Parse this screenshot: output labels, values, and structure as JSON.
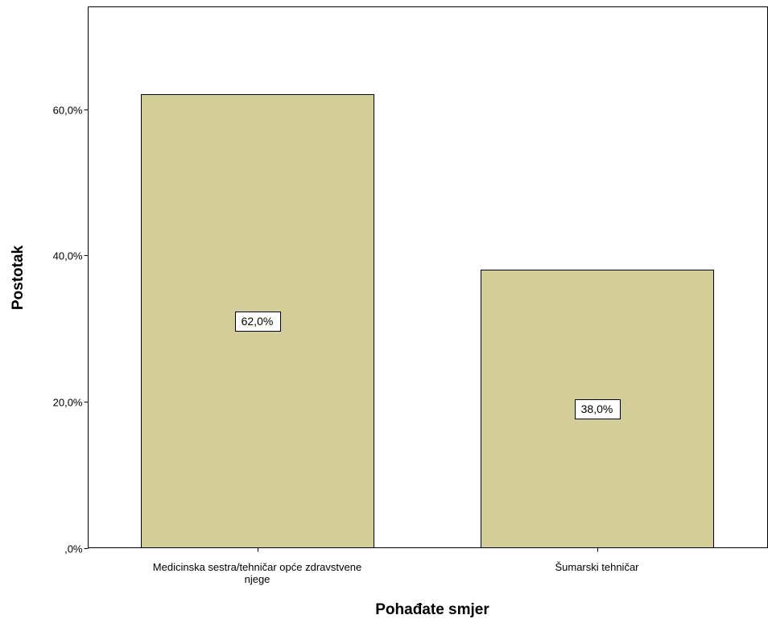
{
  "chart_data": {
    "type": "bar",
    "title": "",
    "xlabel": "Pohađate smjer",
    "ylabel": "Postotak",
    "categories": [
      [
        "Medicinska sestra/tehničar opće zdravstvene",
        "njege"
      ],
      [
        "Šumarski tehničar"
      ]
    ],
    "values": [
      62.0,
      38.0
    ],
    "value_labels": [
      "62,0%",
      "38,0%"
    ],
    "yticks": [
      0,
      20,
      40,
      60
    ],
    "ytick_labels": [
      ",0%",
      "20,0%",
      "40,0%",
      "60,0%"
    ],
    "ylim": [
      0,
      74
    ],
    "grid": false,
    "legend": "none",
    "bar_color": "#d3cd97",
    "bar_stroke": "#000000"
  }
}
